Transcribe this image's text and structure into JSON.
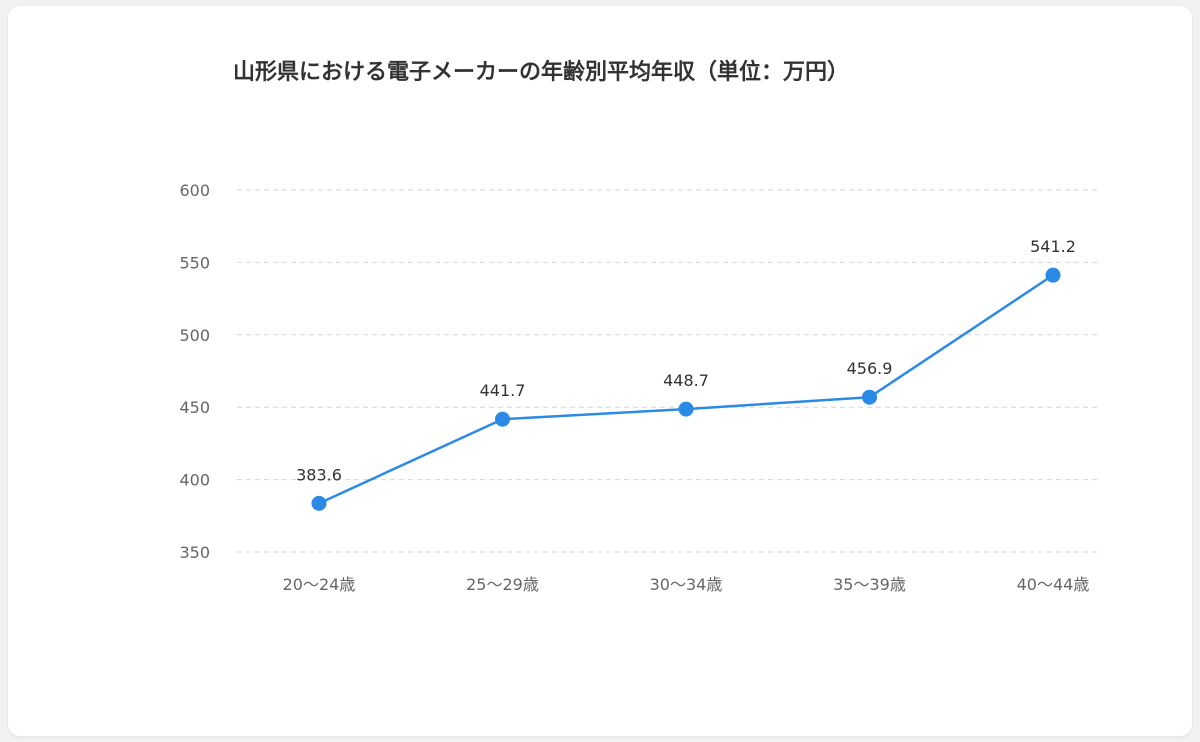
{
  "chart_data": {
    "type": "line",
    "title": "山形県における電子メーカーの年齢別平均年収（単位：万円）",
    "categories": [
      "20〜24歳",
      "25〜29歳",
      "30〜34歳",
      "35〜39歳",
      "40〜44歳"
    ],
    "values": [
      383.6,
      441.7,
      448.7,
      456.9,
      541.2
    ],
    "value_labels": [
      "383.6",
      "441.7",
      "448.7",
      "456.9",
      "541.2"
    ],
    "ylim": [
      350,
      600
    ],
    "yticks": [
      350,
      400,
      450,
      500,
      550,
      600
    ],
    "grid": true,
    "legend": "none",
    "line_color": "#2b8ae6"
  }
}
